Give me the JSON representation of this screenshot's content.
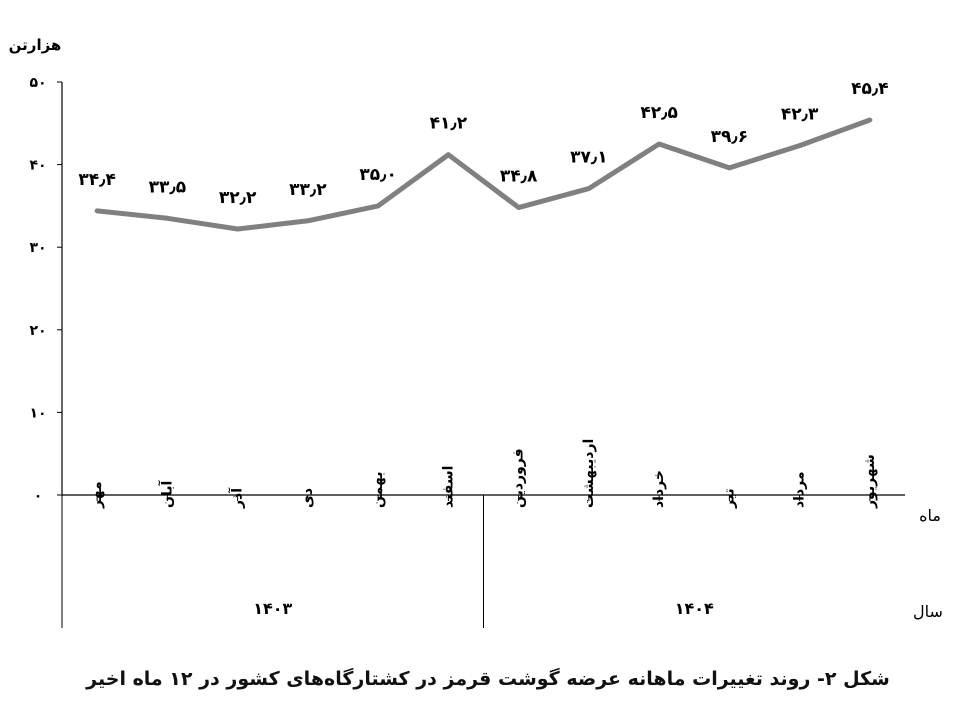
{
  "caption": "شکل ۲- روند تغییرات ماهانه عرضه گوشت قرمز در کشتارگاه‌های کشور در ۱۲ ماه اخیر",
  "chart_data": {
    "type": "line",
    "ylabel": "هزارتن",
    "ylim": [
      0,
      50
    ],
    "yticks": [
      0,
      10,
      20,
      30,
      40,
      50
    ],
    "ytick_labels": [
      "۰",
      "۱۰",
      "۲۰",
      "۳۰",
      "۴۰",
      "۵۰"
    ],
    "x_row_label": "ماه",
    "group_row_label": "سال",
    "categories": [
      "مهر",
      "آبان",
      "آذر",
      "دی",
      "بهمن",
      "اسفند",
      "فروردین",
      "اردیبهشت",
      "خرداد",
      "تیر",
      "مرداد",
      "شهریور"
    ],
    "values": [
      34.4,
      33.5,
      32.2,
      33.2,
      35.0,
      41.2,
      34.8,
      37.1,
      42.5,
      39.6,
      42.3,
      45.4
    ],
    "data_labels": [
      "۳۴٫۴",
      "۳۳٫۵",
      "۳۲٫۲",
      "۳۳٫۲",
      "۳۵٫۰",
      "۴۱٫۲",
      "۳۴٫۸",
      "۳۷٫۱",
      "۴۲٫۵",
      "۳۹٫۶",
      "۴۲٫۳",
      "۴۵٫۴"
    ],
    "groups": [
      {
        "label": "۱۴۰۳",
        "count": 6
      },
      {
        "label": "۱۴۰۴",
        "count": 6
      }
    ],
    "line_color": "#808080",
    "grid": false,
    "legend": "none"
  }
}
